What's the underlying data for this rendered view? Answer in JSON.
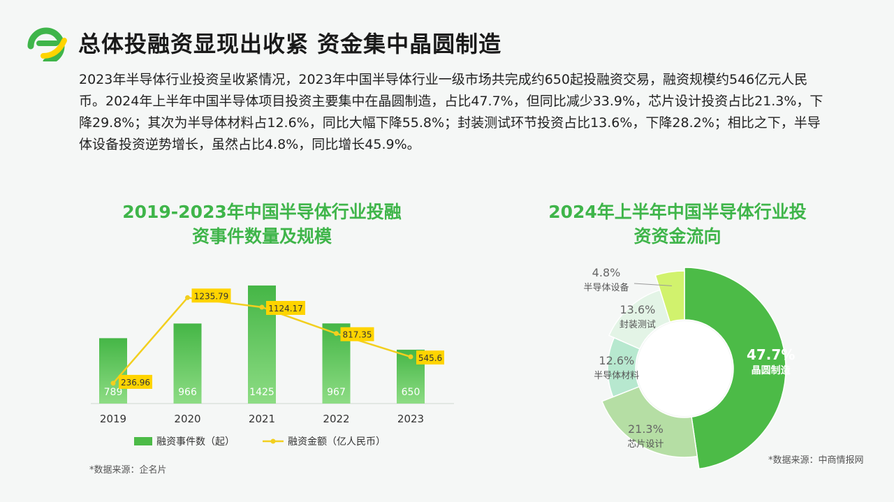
{
  "header": {
    "title": "总体投融资显现出收紧 资金集中晶圆制造",
    "logo_icon": "ef-leaf-logo-icon"
  },
  "intro": {
    "text": "2023年半导体行业投资呈收紧情况，2023年中国半导体行业一级市场共完成约650起投融资交易，融资规模约546亿元人民币。2024年上半年中国半导体项目投资主要集中在晶圆制造，占比47.7%，但同比减少33.9%，芯片设计投资占比21.3%，下降29.8%；其次为半导体材料占12.6%，同比大幅下降55.8%；封装测试环节投资占比13.6%，下降28.2%；相比之下，半导体设备投资逆势增长，虽然占比4.8%，同比增长45.9%。"
  },
  "left": {
    "source": "*数据来源：企名片"
  },
  "right": {
    "source": "*数据来源：中商情报网"
  },
  "colors": {
    "brand_green": "#3fb54a",
    "bar_green": "#4cbb47",
    "line_yellow": "#f2cf1f",
    "label_yellow": "#ffd400"
  },
  "chart_data": [
    {
      "type": "bar",
      "title": "2019-2023年中国半导体行业投融资事件数量及规模",
      "categories": [
        "2019",
        "2020",
        "2021",
        "2022",
        "2023"
      ],
      "series": [
        {
          "name": "融资事件数（起）",
          "type": "bar",
          "values": [
            789,
            966,
            1425,
            967,
            650
          ],
          "labels": [
            "789",
            "966",
            "1425",
            "967",
            "650"
          ]
        },
        {
          "name": "融资金额（亿人民币）",
          "type": "line",
          "values": [
            236.96,
            1235.79,
            1124.17,
            817.35,
            545.6
          ],
          "labels": [
            "236.96",
            "1235.79",
            "1124.17",
            "817.35",
            "545.6"
          ]
        }
      ],
      "xlabel": "",
      "ylabel": "",
      "bar_ylim": [
        0,
        1500
      ],
      "line_ylim": [
        0,
        1450
      ],
      "legend": "bottom"
    },
    {
      "type": "pie",
      "title": "2024年上半年中国半导体行业投资资金流向",
      "donut": true,
      "slices": [
        {
          "label": "晶圆制造",
          "value": 47.7,
          "value_label": "47.7%",
          "color": "#4cbb47"
        },
        {
          "label": "芯片设计",
          "value": 21.3,
          "value_label": "21.3%",
          "color": "#b5dea4"
        },
        {
          "label": "半导体材料",
          "value": 12.6,
          "value_label": "12.6%",
          "color": "#b7e8cf"
        },
        {
          "label": "封装测试",
          "value": 13.6,
          "value_label": "13.6%",
          "color": "#e3f4e6"
        },
        {
          "label": "半导体设备",
          "value": 4.8,
          "value_label": "4.8%",
          "color": "#d1f26d"
        }
      ]
    }
  ]
}
